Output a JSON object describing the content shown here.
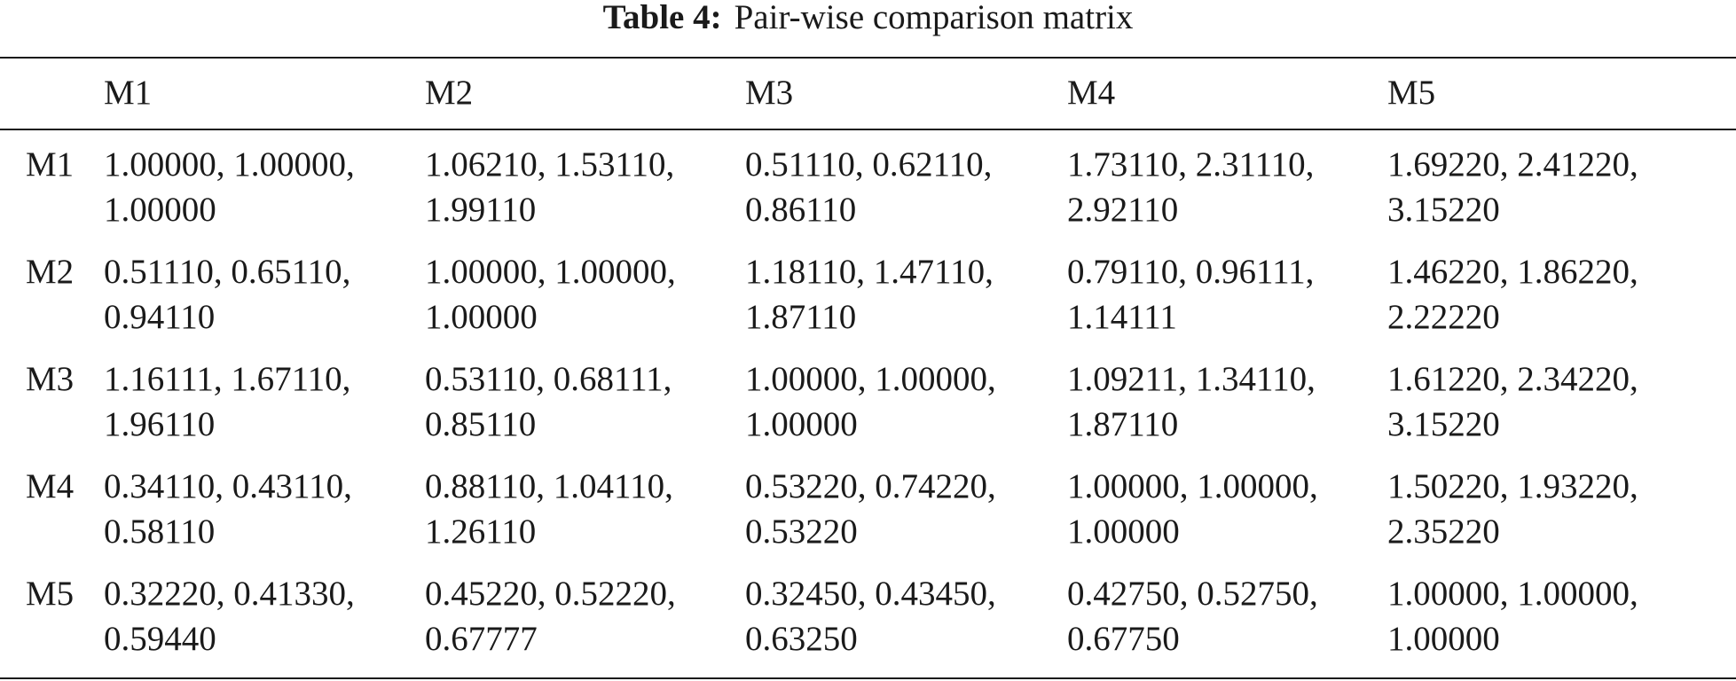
{
  "caption": {
    "label": "Table 4:",
    "title": "Pair-wise comparison matrix"
  },
  "columns": [
    "M1",
    "M2",
    "M3",
    "M4",
    "M5"
  ],
  "rows": [
    {
      "label": "M1",
      "cells": [
        [
          "1.00000, 1.00000,",
          "1.00000"
        ],
        [
          "1.06210, 1.53110,",
          "1.99110"
        ],
        [
          "0.51110, 0.62110,",
          "0.86110"
        ],
        [
          "1.73110, 2.31110,",
          "2.92110"
        ],
        [
          "1.69220, 2.41220,",
          "3.15220"
        ]
      ]
    },
    {
      "label": "M2",
      "cells": [
        [
          "0.51110, 0.65110,",
          "0.94110"
        ],
        [
          "1.00000, 1.00000,",
          "1.00000"
        ],
        [
          "1.18110, 1.47110,",
          "1.87110"
        ],
        [
          "0.79110, 0.96111,",
          "1.14111"
        ],
        [
          "1.46220, 1.86220,",
          "2.22220"
        ]
      ]
    },
    {
      "label": "M3",
      "cells": [
        [
          "1.16111, 1.67110,",
          "1.96110"
        ],
        [
          "0.53110, 0.68111,",
          "0.85110"
        ],
        [
          "1.00000, 1.00000,",
          "1.00000"
        ],
        [
          "1.09211, 1.34110,",
          "1.87110"
        ],
        [
          "1.61220, 2.34220,",
          "3.15220"
        ]
      ]
    },
    {
      "label": "M4",
      "cells": [
        [
          "0.34110, 0.43110,",
          "0.58110"
        ],
        [
          "0.88110, 1.04110,",
          "1.26110"
        ],
        [
          "0.53220, 0.74220,",
          "0.53220"
        ],
        [
          "1.00000, 1.00000,",
          "1.00000"
        ],
        [
          "1.50220, 1.93220,",
          "2.35220"
        ]
      ]
    },
    {
      "label": "M5",
      "cells": [
        [
          "0.32220, 0.41330,",
          "0.59440"
        ],
        [
          "0.45220, 0.52220,",
          "0.67777"
        ],
        [
          "0.32450, 0.43450,",
          "0.63250"
        ],
        [
          "0.42750, 0.52750,",
          "0.67750"
        ],
        [
          "1.00000, 1.00000,",
          "1.00000"
        ]
      ]
    }
  ]
}
